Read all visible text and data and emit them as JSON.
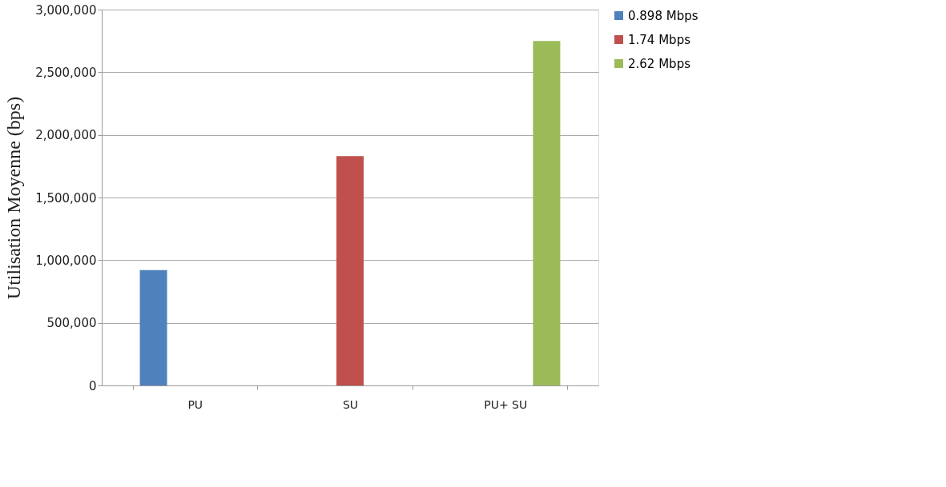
{
  "chart_data": {
    "type": "bar",
    "ylabel": "Utilisation Moyenne (bps)",
    "categories": [
      "PU",
      "SU",
      "PU+ SU"
    ],
    "series": [
      {
        "name": "0.898 Mbps",
        "color": "#4f81bd",
        "values": [
          920000,
          null,
          null
        ]
      },
      {
        "name": "1.74 Mbps",
        "color": "#c0504d",
        "values": [
          null,
          1830000,
          null
        ]
      },
      {
        "name": "2.62 Mbps",
        "color": "#9bbb59",
        "values": [
          null,
          null,
          2750000
        ]
      }
    ],
    "ylim": [
      0,
      3000000
    ],
    "yticks": [
      0,
      {
        "value": 500000,
        "label": "500,000"
      },
      {
        "value": 1000000,
        "label": "1,000,000"
      },
      {
        "value": 1500000,
        "label": "1,500,000"
      },
      {
        "value": 2000000,
        "label": "2,000,000"
      },
      {
        "value": 2500000,
        "label": "2,500,000"
      },
      {
        "value": 3000000,
        "label": "3,000,000"
      }
    ],
    "grid": "y",
    "legend": "top right"
  }
}
